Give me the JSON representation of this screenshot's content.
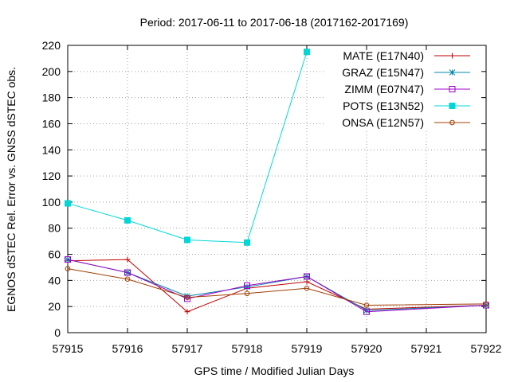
{
  "chart_data": {
    "type": "line",
    "title": "Period: 2017-06-11 to 2017-06-18 (2017162-2017169)",
    "xlabel": "GPS time / Modified Julian Days",
    "ylabel": "EGNOS dSTEC Rel. Error vs. GNSS dSTEC obs.",
    "xlim": [
      57915,
      57922
    ],
    "ylim": [
      0,
      220
    ],
    "xticks": [
      "57915",
      "57916",
      "57917",
      "57918",
      "57919",
      "57920",
      "57921",
      "57922"
    ],
    "yticks": [
      "0",
      "20",
      "40",
      "60",
      "80",
      "100",
      "120",
      "140",
      "160",
      "180",
      "200",
      "220"
    ],
    "grid": true,
    "legend_position": "top-right",
    "series": [
      {
        "name": "MATE (E17N40)",
        "color": "#c00000",
        "marker": "plus",
        "x": [
          57915,
          57916,
          57917,
          57918,
          57919,
          57920,
          57922
        ],
        "y": [
          55,
          56,
          16,
          34,
          39,
          18,
          21
        ]
      },
      {
        "name": "GRAZ (E15N47)",
        "color": "#0088a8",
        "marker": "star",
        "x": [
          57915,
          57916,
          57917,
          57918,
          57919,
          57920,
          57922
        ],
        "y": [
          56,
          46,
          28,
          35,
          43,
          17,
          21
        ]
      },
      {
        "name": "ZIMM (E07N47)",
        "color": "#a000c8",
        "marker": "open-square",
        "x": [
          57915,
          57916,
          57917,
          57918,
          57919,
          57920,
          57922
        ],
        "y": [
          56,
          46,
          26,
          36,
          43,
          16,
          21
        ]
      },
      {
        "name": "POTS (E13N52)",
        "color": "#00d8d8",
        "marker": "filled-square",
        "x": [
          57915,
          57916,
          57917,
          57918,
          57919
        ],
        "y": [
          99,
          86,
          71,
          69,
          215
        ]
      },
      {
        "name": "ONSA (E12N57)",
        "color": "#a03c00",
        "marker": "open-circle",
        "x": [
          57915,
          57916,
          57917,
          57918,
          57919,
          57920,
          57922
        ],
        "y": [
          49,
          41,
          27,
          30,
          34,
          21,
          22
        ]
      }
    ]
  }
}
